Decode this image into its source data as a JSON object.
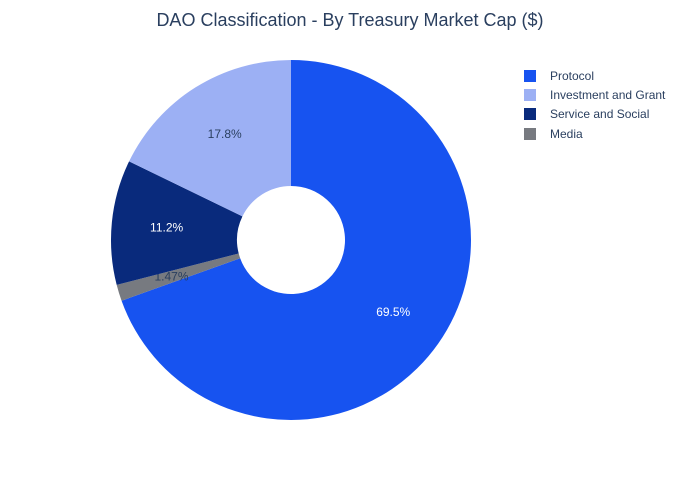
{
  "chart_data": {
    "type": "pie",
    "title": "DAO Classification - By Treasury Market Cap ($)",
    "hole": 0.3,
    "legend_position": "top-right",
    "slices": [
      {
        "label": "Protocol",
        "percent": 69.5,
        "percent_label": "69.5%",
        "color": "#1753f0",
        "text_color": "#ffffff"
      },
      {
        "label": "Media",
        "percent": 1.47,
        "percent_label": "1.47%",
        "color": "#777a80",
        "text_color": "#2a3f5f"
      },
      {
        "label": "Service and Social",
        "percent": 11.2,
        "percent_label": "11.2%",
        "color": "#092a7c",
        "text_color": "#ffffff"
      },
      {
        "label": "Investment and Grant",
        "percent": 17.8,
        "percent_label": "17.8%",
        "color": "#9cb0f4",
        "text_color": "#2a3f5f"
      }
    ],
    "legend_order": [
      "Protocol",
      "Investment and Grant",
      "Service and Social",
      "Media"
    ]
  }
}
